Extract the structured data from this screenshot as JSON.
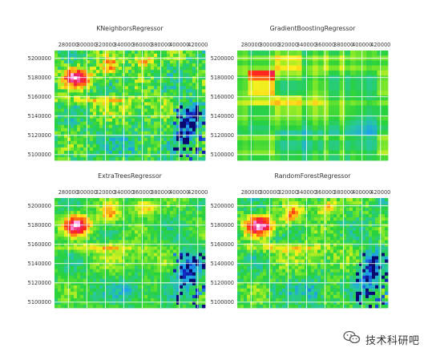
{
  "chart_data": [
    {
      "type": "heatmap",
      "title": "KNeighborsRegressor",
      "xticks": [
        280000,
        300000,
        320000,
        340000,
        360000,
        380000,
        400000,
        420000
      ],
      "yticks": [
        5100000,
        5120000,
        5140000,
        5160000,
        5180000,
        5200000
      ],
      "xlim": [
        265000,
        428000
      ],
      "ylim": [
        5094000,
        5208000
      ],
      "grid": true,
      "xaxis_position": "top",
      "colormap": "gist_ncar-like (white, magenta, red, orange, yellow, green, cyan, blue)"
    },
    {
      "type": "heatmap",
      "title": "GradientBoostingRegressor",
      "xticks": [
        280000,
        300000,
        320000,
        340000,
        360000,
        380000,
        400000,
        420000
      ],
      "yticks": [
        5100000,
        5120000,
        5140000,
        5160000,
        5180000,
        5200000
      ],
      "xlim": [
        265000,
        428000
      ],
      "ylim": [
        5094000,
        5208000
      ],
      "grid": true,
      "xaxis_position": "top",
      "colormap": "gist_ncar-like (white, magenta, red, orange, yellow, green, cyan, blue)"
    },
    {
      "type": "heatmap",
      "title": "ExtraTreesRegressor",
      "xticks": [
        280000,
        300000,
        320000,
        340000,
        360000,
        380000,
        400000,
        420000
      ],
      "yticks": [
        5100000,
        5120000,
        5140000,
        5160000,
        5180000,
        5200000
      ],
      "xlim": [
        265000,
        428000
      ],
      "ylim": [
        5094000,
        5208000
      ],
      "grid": true,
      "xaxis_position": "top",
      "colormap": "gist_ncar-like (white, magenta, red, orange, yellow, green, cyan, blue)"
    },
    {
      "type": "heatmap",
      "title": "RandomForestRegressor",
      "xticks": [
        280000,
        300000,
        320000,
        340000,
        360000,
        380000,
        400000,
        420000
      ],
      "yticks": [
        5100000,
        5120000,
        5140000,
        5160000,
        5180000,
        5200000
      ],
      "xlim": [
        265000,
        428000
      ],
      "ylim": [
        5094000,
        5208000
      ],
      "grid": true,
      "xaxis_position": "top",
      "colormap": "gist_ncar-like (white, magenta, red, orange, yellow, green, cyan, blue)"
    }
  ],
  "watermark": {
    "text": "技术科研吧",
    "icon": "wechat-icon"
  }
}
